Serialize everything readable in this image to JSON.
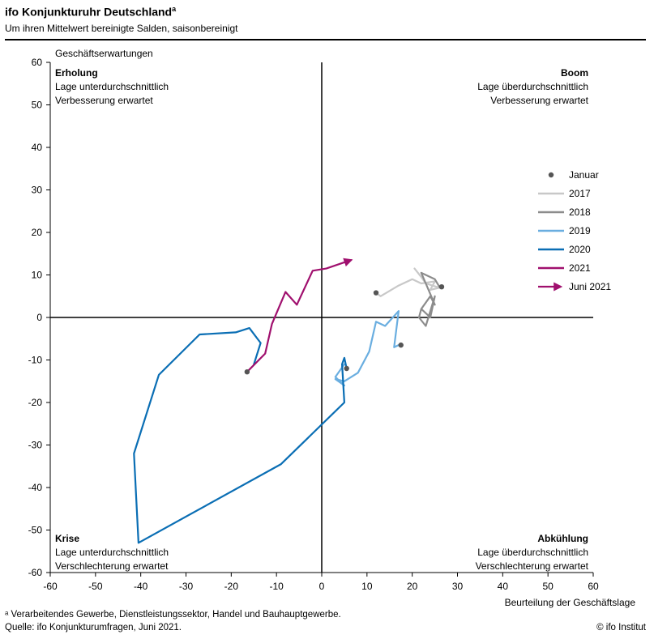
{
  "header": {
    "title": "ifo Konjunkturuhr  Deutschland",
    "title_sup": "a",
    "subtitle": "Um ihren Mittelwert bereinigte Salden, saisonbereinigt"
  },
  "footer": {
    "footnote": "ᵃ Verarbeitendes Gewerbe, Dienstleistungssektor, Handel und Bauhauptgewerbe.",
    "source": "Quelle: ifo Konjunkturumfragen, Juni 2021.",
    "credit": "© ifo Institut"
  },
  "quadrants": {
    "top_left": {
      "title": "Erholung",
      "line1": "Lage unterdurchschnittlich",
      "line2": "Verbesserung erwartet"
    },
    "top_right": {
      "title": "Boom",
      "line1": "Lage überdurchschnittlich",
      "line2": "Verbesserung erwartet"
    },
    "bottom_left": {
      "title": "Krise",
      "line1": "Lage unterdurchschnittlich",
      "line2": "Verschlechterung erwartet"
    },
    "bottom_right": {
      "title": "Abkühlung",
      "line1": "Lage überdurchschnittlich",
      "line2": "Verschlechterung erwartet"
    }
  },
  "colors": {
    "2017": "#c8c8c8",
    "2018": "#8c8c8c",
    "2019": "#6aaee0",
    "2020": "#0a6eb4",
    "2021": "#a0106e",
    "january_marker": "#555555"
  },
  "chart_data": {
    "type": "line",
    "xlabel": "Beurteilung der Geschäftslage",
    "ylabel": "Geschäftserwartungen",
    "xlim": [
      -60,
      60
    ],
    "ylim": [
      -60,
      60
    ],
    "xticks": [
      -60,
      -50,
      -40,
      -30,
      -20,
      -10,
      0,
      10,
      20,
      30,
      40,
      50,
      60
    ],
    "yticks": [
      -60,
      -50,
      -40,
      -30,
      -20,
      -10,
      0,
      10,
      20,
      30,
      40,
      50,
      60
    ],
    "grid": false,
    "legend": [
      "Januar",
      "2017",
      "2018",
      "2019",
      "2020",
      "2021",
      "Juni 2021"
    ],
    "legend_position": "right",
    "series": [
      {
        "name": "2017",
        "x": [
          12,
          13,
          17,
          20,
          22,
          25,
          24,
          26,
          23,
          22,
          20.5
        ],
        "y": [
          5.8,
          5,
          7.5,
          9,
          8,
          8.5,
          6.5,
          7,
          8,
          9.5,
          11.5
        ]
      },
      {
        "name": "2018",
        "x": [
          26,
          25,
          22,
          23,
          25,
          24,
          22,
          24,
          25,
          23,
          21.5,
          22
        ],
        "y": [
          7.2,
          9,
          10.5,
          8,
          3,
          5,
          2,
          0,
          5,
          -2,
          0,
          2
        ]
      },
      {
        "name": "2019",
        "x": [
          17,
          16,
          17,
          14,
          12,
          10.5,
          8,
          5,
          3,
          5,
          3,
          5,
          4.5
        ],
        "y": [
          -6.5,
          -7,
          1.5,
          -2,
          -1,
          -8,
          -13,
          -15,
          -14.5,
          -16,
          -14,
          -11,
          -11.5
        ]
      },
      {
        "name": "2020",
        "x": [
          5.5,
          5,
          4.5,
          5,
          -9,
          -40.5,
          -41.5,
          -36,
          -27,
          -19,
          -16,
          -13.5,
          -15
        ],
        "y": [
          -12,
          -9.5,
          -11,
          -20,
          -34.5,
          -53,
          -32,
          -13.5,
          -4,
          -3.5,
          -2.5,
          -6,
          -11
        ]
      },
      {
        "name": "2021",
        "x": [
          -16.5,
          -12.5,
          -11,
          -8,
          -5.5,
          -2,
          1,
          6.5
        ],
        "y": [
          -12.8,
          -8.5,
          -1.5,
          6,
          3,
          11,
          11.5,
          13.5
        ]
      }
    ],
    "january_points": [
      {
        "label": "Januar 2017",
        "x": 12,
        "y": 5.8
      },
      {
        "label": "Januar 2018",
        "x": 26.5,
        "y": 7.2
      },
      {
        "label": "Januar 2019",
        "x": 17.5,
        "y": -6.5
      },
      {
        "label": "Januar 2020",
        "x": 5.5,
        "y": -12
      },
      {
        "label": "Januar 2021",
        "x": -16.5,
        "y": -12.8
      }
    ],
    "current_point": {
      "label": "Juni 2021",
      "x": 6.5,
      "y": 13.5
    }
  }
}
